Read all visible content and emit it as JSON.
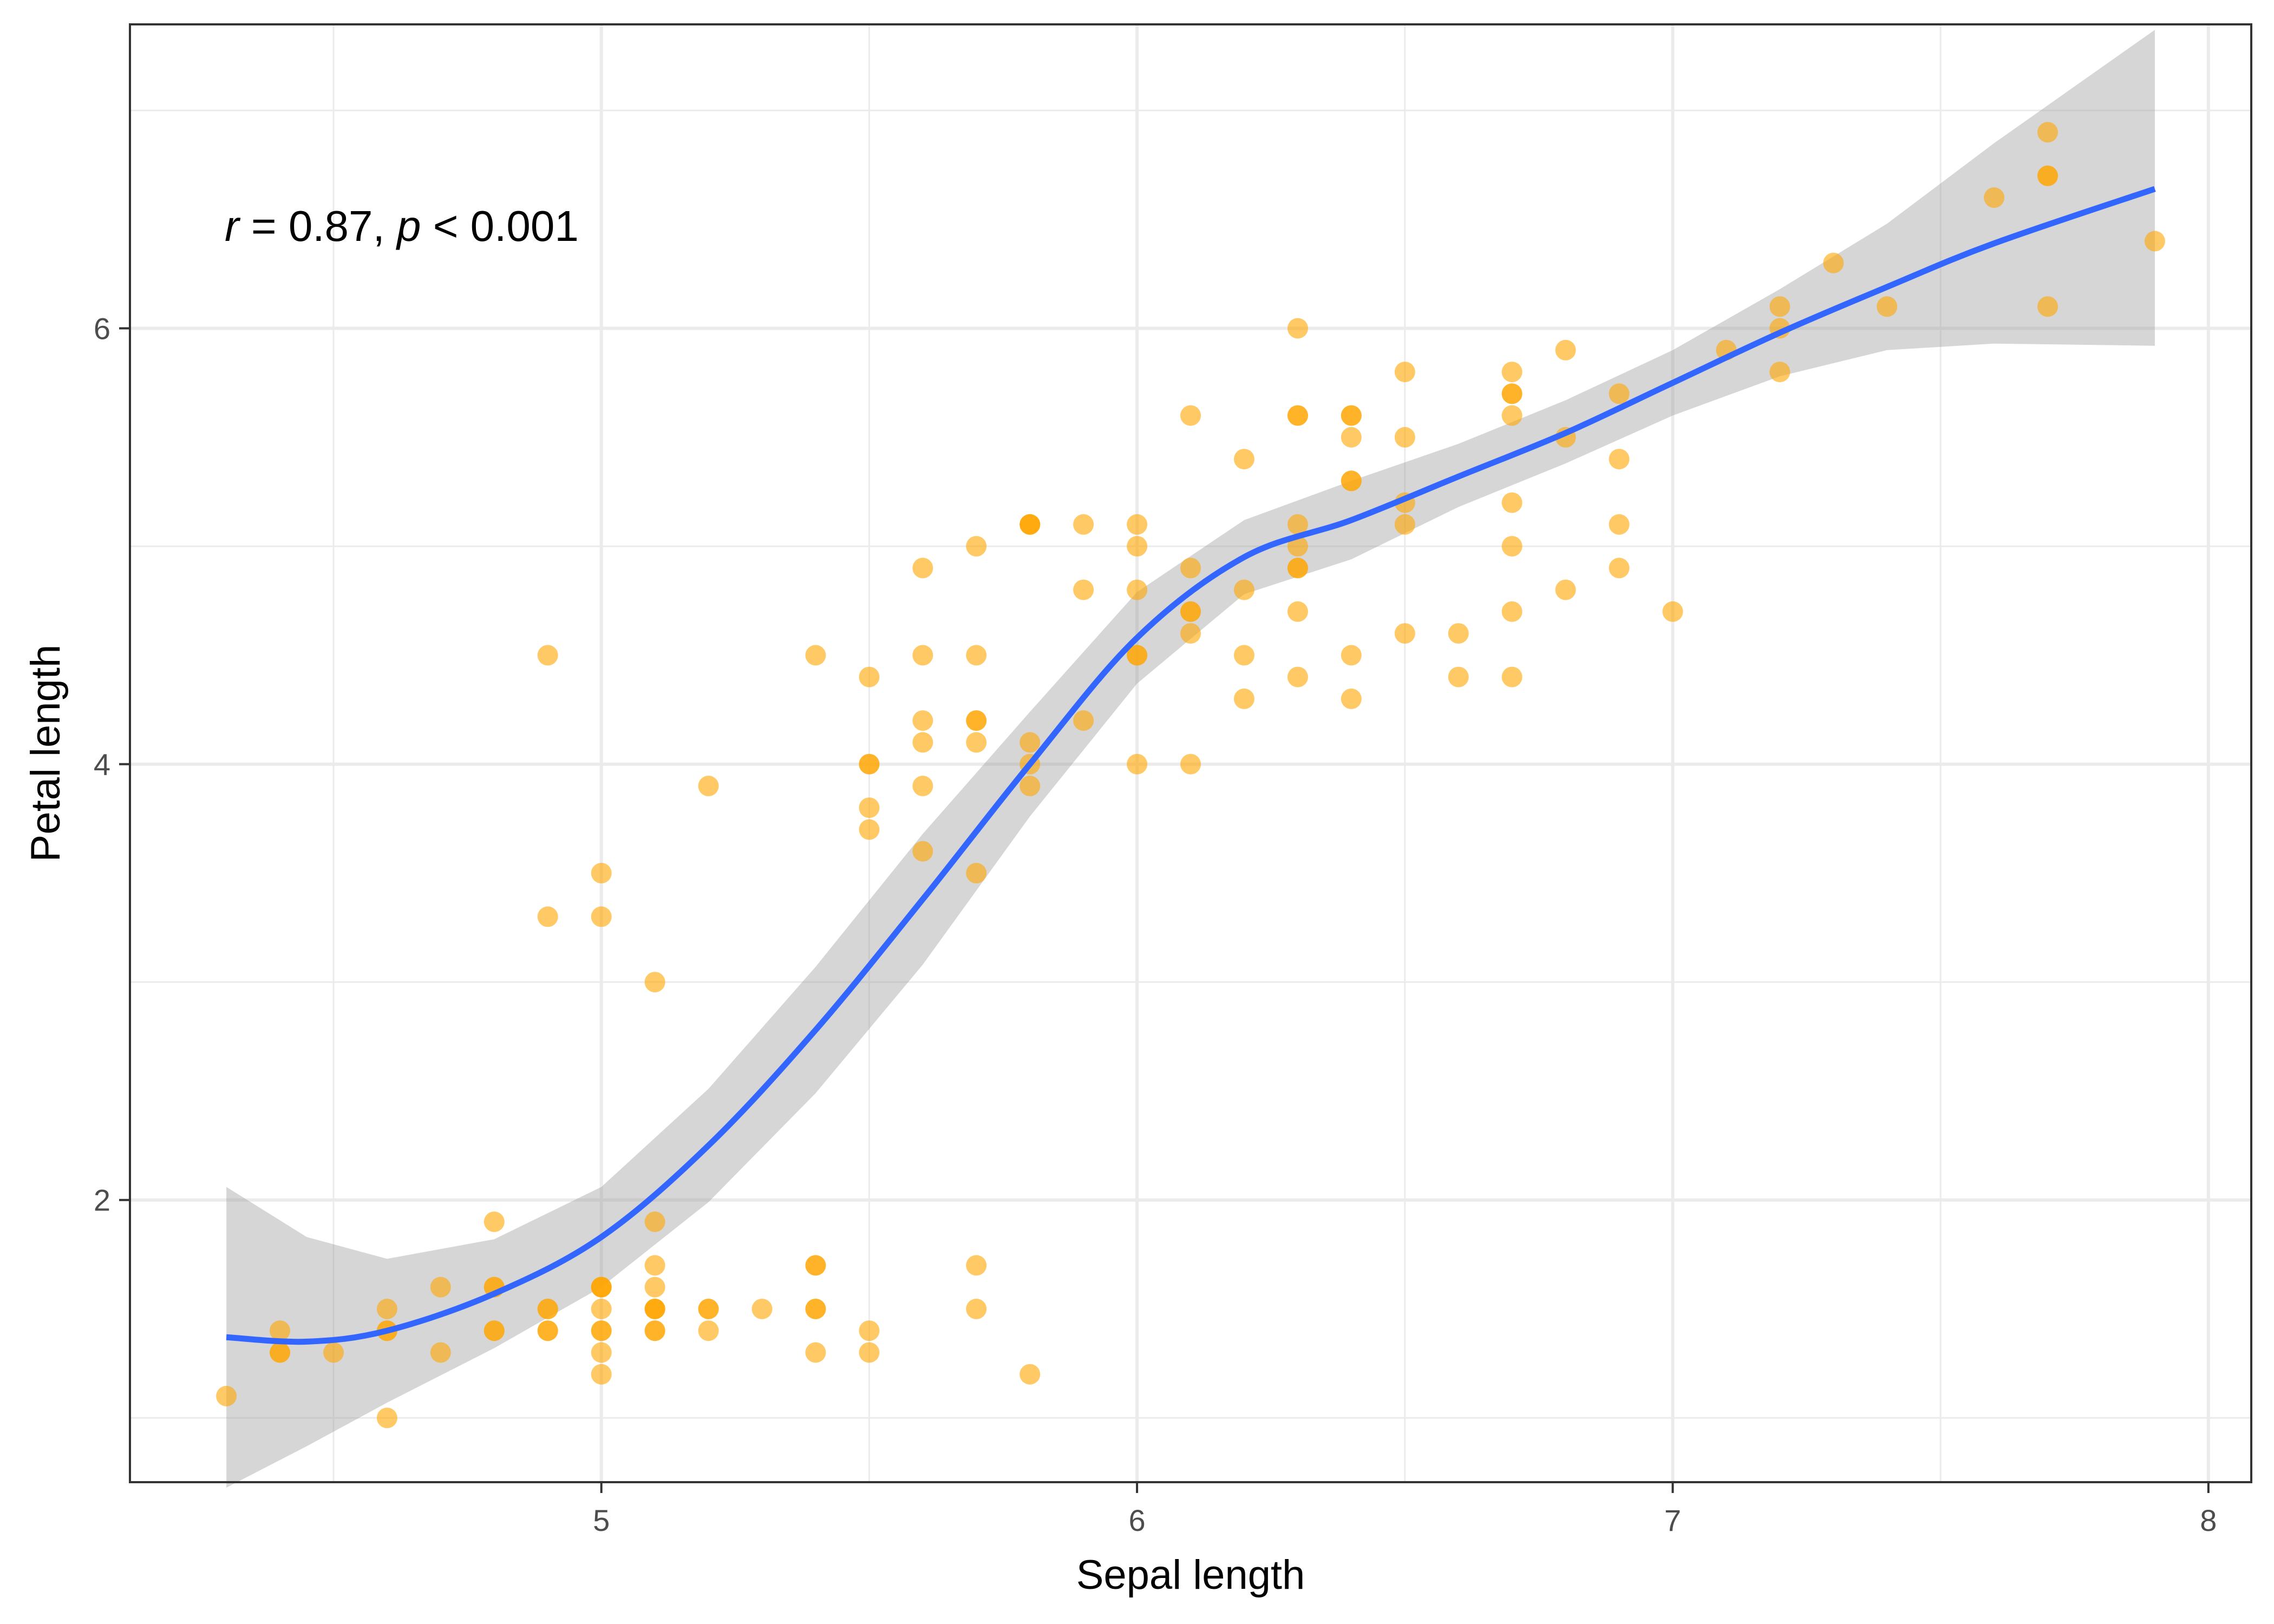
{
  "chart_data": {
    "type": "scatter",
    "title": "",
    "xlabel": "Sepal length",
    "ylabel": "Petal length",
    "xlim": [
      4.12,
      8.08
    ],
    "ylim": [
      0.705,
      7.395
    ],
    "x_ticks": [
      5,
      6,
      7,
      8
    ],
    "x_tick_labels": [
      "5",
      "6",
      "7",
      "8"
    ],
    "y_ticks": [
      2,
      4,
      6
    ],
    "y_tick_labels": [
      "2",
      "4",
      "6"
    ],
    "x_minor": [
      4.5,
      5.5,
      6.5,
      7.5
    ],
    "y_minor": [
      1,
      3,
      5,
      7
    ],
    "grid": true,
    "legend": "none",
    "annotation": {
      "r_symbol": "r",
      "r_text": " = 0.87, ",
      "p_symbol": "p",
      "p_text": " < 0.001",
      "position": "top-left"
    },
    "colors": {
      "points": "#FFA500",
      "smooth_line": "#3366FF",
      "ribbon": "#999999",
      "grid": "#EBEBEB",
      "panel_border": "#333333"
    },
    "series": [
      {
        "values": [
          [
            5.1,
            1.4
          ],
          [
            4.9,
            1.4
          ],
          [
            4.7,
            1.3
          ],
          [
            4.6,
            1.5
          ],
          [
            5.0,
            1.4
          ],
          [
            5.4,
            1.7
          ],
          [
            4.6,
            1.4
          ],
          [
            5.0,
            1.5
          ],
          [
            4.4,
            1.4
          ],
          [
            4.9,
            1.5
          ],
          [
            5.4,
            1.5
          ],
          [
            4.8,
            1.6
          ],
          [
            4.8,
            1.4
          ],
          [
            4.3,
            1.1
          ],
          [
            5.8,
            1.2
          ],
          [
            5.7,
            1.5
          ],
          [
            5.4,
            1.3
          ],
          [
            5.1,
            1.4
          ],
          [
            5.7,
            1.7
          ],
          [
            5.1,
            1.5
          ],
          [
            5.4,
            1.7
          ],
          [
            5.1,
            1.5
          ],
          [
            4.6,
            1.0
          ],
          [
            5.1,
            1.7
          ],
          [
            4.8,
            1.9
          ],
          [
            5.0,
            1.6
          ],
          [
            5.0,
            1.6
          ],
          [
            5.2,
            1.5
          ],
          [
            5.2,
            1.4
          ],
          [
            4.7,
            1.6
          ],
          [
            4.8,
            1.6
          ],
          [
            5.4,
            1.5
          ],
          [
            5.2,
            1.5
          ],
          [
            5.5,
            1.4
          ],
          [
            4.9,
            1.5
          ],
          [
            5.0,
            1.2
          ],
          [
            5.5,
            1.3
          ],
          [
            4.9,
            1.4
          ],
          [
            4.4,
            1.3
          ],
          [
            5.1,
            1.5
          ],
          [
            5.0,
            1.3
          ],
          [
            4.5,
            1.3
          ],
          [
            4.4,
            1.3
          ],
          [
            5.0,
            1.6
          ],
          [
            5.1,
            1.9
          ],
          [
            4.8,
            1.4
          ],
          [
            5.1,
            1.6
          ],
          [
            4.6,
            1.4
          ],
          [
            5.3,
            1.5
          ],
          [
            5.0,
            1.4
          ],
          [
            7.0,
            4.7
          ],
          [
            6.4,
            4.5
          ],
          [
            6.9,
            4.9
          ],
          [
            5.5,
            4.0
          ],
          [
            6.5,
            4.6
          ],
          [
            5.7,
            4.5
          ],
          [
            6.3,
            4.7
          ],
          [
            4.9,
            3.3
          ],
          [
            6.6,
            4.6
          ],
          [
            5.2,
            3.9
          ],
          [
            5.0,
            3.5
          ],
          [
            5.9,
            4.2
          ],
          [
            6.0,
            4.0
          ],
          [
            6.1,
            4.7
          ],
          [
            5.6,
            3.6
          ],
          [
            6.7,
            4.4
          ],
          [
            5.6,
            4.5
          ],
          [
            5.8,
            4.1
          ],
          [
            6.2,
            4.5
          ],
          [
            5.6,
            3.9
          ],
          [
            5.9,
            4.8
          ],
          [
            6.1,
            4.0
          ],
          [
            6.3,
            4.9
          ],
          [
            6.1,
            4.7
          ],
          [
            6.4,
            4.3
          ],
          [
            6.6,
            4.4
          ],
          [
            6.8,
            4.8
          ],
          [
            6.7,
            5.0
          ],
          [
            6.0,
            4.5
          ],
          [
            5.7,
            3.5
          ],
          [
            5.5,
            3.8
          ],
          [
            5.5,
            3.7
          ],
          [
            5.8,
            3.9
          ],
          [
            6.0,
            5.1
          ],
          [
            5.4,
            4.5
          ],
          [
            6.0,
            4.5
          ],
          [
            6.7,
            4.7
          ],
          [
            6.3,
            4.4
          ],
          [
            5.6,
            4.1
          ],
          [
            5.5,
            4.0
          ],
          [
            5.5,
            4.4
          ],
          [
            6.1,
            4.6
          ],
          [
            5.8,
            4.0
          ],
          [
            5.0,
            3.3
          ],
          [
            5.6,
            4.2
          ],
          [
            5.7,
            4.2
          ],
          [
            5.7,
            4.2
          ],
          [
            6.2,
            4.3
          ],
          [
            5.1,
            3.0
          ],
          [
            5.7,
            4.1
          ],
          [
            6.3,
            6.0
          ],
          [
            5.8,
            5.1
          ],
          [
            7.1,
            5.9
          ],
          [
            6.3,
            5.6
          ],
          [
            6.5,
            5.8
          ],
          [
            7.6,
            6.6
          ],
          [
            4.9,
            4.5
          ],
          [
            7.3,
            6.3
          ],
          [
            6.7,
            5.8
          ],
          [
            7.2,
            6.1
          ],
          [
            6.5,
            5.1
          ],
          [
            6.4,
            5.3
          ],
          [
            6.8,
            5.5
          ],
          [
            5.7,
            5.0
          ],
          [
            5.8,
            5.1
          ],
          [
            6.4,
            5.3
          ],
          [
            6.5,
            5.5
          ],
          [
            7.7,
            6.7
          ],
          [
            7.7,
            6.9
          ],
          [
            6.0,
            5.0
          ],
          [
            6.9,
            5.7
          ],
          [
            5.6,
            4.9
          ],
          [
            7.7,
            6.7
          ],
          [
            6.3,
            4.9
          ],
          [
            6.7,
            5.7
          ],
          [
            7.2,
            6.0
          ],
          [
            6.2,
            4.8
          ],
          [
            6.1,
            4.9
          ],
          [
            6.4,
            5.6
          ],
          [
            7.2,
            5.8
          ],
          [
            7.4,
            6.1
          ],
          [
            7.9,
            6.4
          ],
          [
            6.4,
            5.6
          ],
          [
            6.3,
            5.1
          ],
          [
            6.1,
            5.6
          ],
          [
            7.7,
            6.1
          ],
          [
            6.3,
            5.6
          ],
          [
            6.4,
            5.5
          ],
          [
            6.0,
            4.8
          ],
          [
            6.9,
            5.4
          ],
          [
            6.7,
            5.6
          ],
          [
            6.9,
            5.1
          ],
          [
            5.8,
            5.1
          ],
          [
            6.8,
            5.9
          ],
          [
            6.7,
            5.7
          ],
          [
            6.7,
            5.2
          ],
          [
            6.3,
            5.0
          ],
          [
            6.5,
            5.2
          ],
          [
            6.2,
            5.4
          ],
          [
            5.9,
            5.1
          ]
        ]
      }
    ],
    "smooth": {
      "method": "loess",
      "x": [
        4.3,
        4.45,
        4.6,
        4.8,
        5.0,
        5.2,
        5.4,
        5.6,
        5.8,
        6.0,
        6.2,
        6.4,
        6.6,
        6.8,
        7.0,
        7.2,
        7.4,
        7.6,
        7.9
      ],
      "y": [
        1.37,
        1.35,
        1.4,
        1.57,
        1.83,
        2.25,
        2.78,
        3.38,
        4.0,
        4.58,
        4.95,
        5.12,
        5.32,
        5.52,
        5.75,
        5.98,
        6.19,
        6.39,
        6.64
      ],
      "ymin": [
        0.68,
        0.87,
        1.07,
        1.32,
        1.6,
        1.99,
        2.49,
        3.08,
        3.76,
        4.37,
        4.78,
        4.94,
        5.18,
        5.38,
        5.6,
        5.78,
        5.9,
        5.93,
        5.92
      ],
      "ymax": [
        2.06,
        1.83,
        1.73,
        1.82,
        2.06,
        2.51,
        3.07,
        3.68,
        4.24,
        4.79,
        5.12,
        5.3,
        5.47,
        5.67,
        5.9,
        6.18,
        6.48,
        6.85,
        7.37
      ]
    }
  }
}
